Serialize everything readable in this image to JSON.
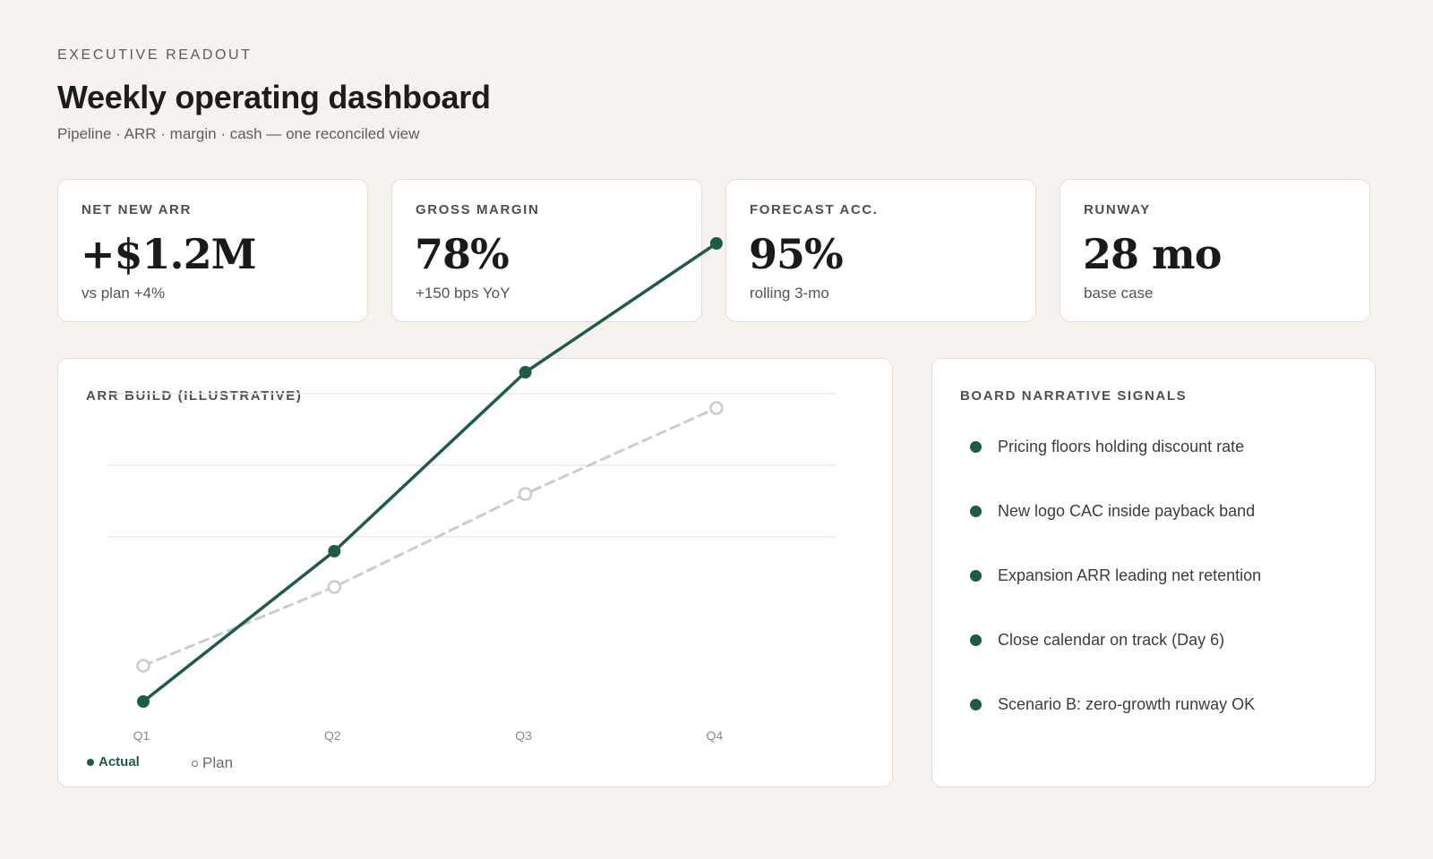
{
  "header": {
    "eyebrow": "EXECUTIVE READOUT",
    "title": "Weekly operating dashboard",
    "subtitle": "Pipeline · ARR · margin · cash — one reconciled view"
  },
  "kpis": [
    {
      "label": "NET NEW ARR",
      "value": "+$1.2M",
      "note": "vs plan +4%"
    },
    {
      "label": "GROSS MARGIN",
      "value": "78%",
      "note": "+150 bps YoY"
    },
    {
      "label": "FORECAST ACC.",
      "value": "95%",
      "note": "rolling 3-mo"
    },
    {
      "label": "RUNWAY",
      "value": "28 mo",
      "note": "base case"
    }
  ],
  "arr_panel": {
    "heading": "ARR BUILD (ILLUSTRATIVE)"
  },
  "signals": {
    "heading": "BOARD NARRATIVE SIGNALS",
    "items": [
      "Pricing floors holding discount rate",
      "New logo CAC inside payback band",
      "Expansion ARR leading net retention",
      "Close calendar on track (Day 6)",
      "Scenario B: zero-growth runway OK"
    ]
  },
  "colors": {
    "actual": "#1f5c46",
    "plan": "#c6cfc9",
    "background": "#f6f3ee"
  },
  "chart_data": {
    "type": "line",
    "title": "ARR BUILD (ILLUSTRATIVE)",
    "categories": [
      "Q1",
      "Q2",
      "Q3",
      "Q4"
    ],
    "series": [
      {
        "name": "Actual",
        "values": [
          0.7,
          2.8,
          5.3,
          7.1
        ],
        "style": "solid",
        "marker": "filled"
      },
      {
        "name": "Plan",
        "values": [
          1.2,
          2.3,
          3.6,
          4.8
        ],
        "style": "dashed",
        "marker": "hollow"
      }
    ],
    "ylim": [
      0,
      8
    ],
    "grid": true,
    "y_tick_labels_shown": false,
    "legend": "bottom-left"
  }
}
